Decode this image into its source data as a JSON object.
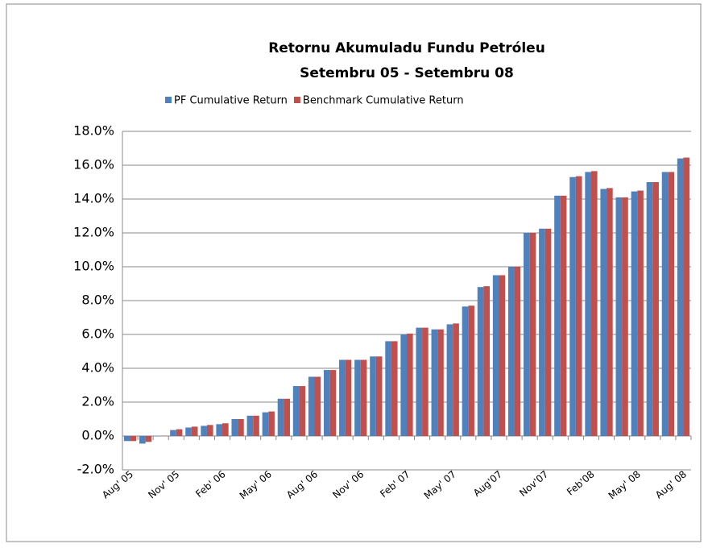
{
  "chart_data": {
    "type": "bar",
    "title": "Retornu Akumuladu Fundu Petróleu",
    "subtitle": "Setembru 05 - Setembru 08",
    "categories": [
      "Aug' 05",
      null,
      null,
      "Nov' 05",
      null,
      null,
      "Feb' 06",
      null,
      null,
      "May' 06",
      null,
      null,
      "Aug' 06",
      null,
      null,
      "Nov' 06",
      null,
      null,
      "Feb' 07",
      null,
      null,
      "May' 07",
      null,
      null,
      "Aug'07",
      null,
      null,
      "Nov'07",
      null,
      null,
      "Feb'08",
      null,
      null,
      "May' 08",
      null,
      null,
      "Aug' 08"
    ],
    "series": [
      {
        "name": "PF Cumulative Return",
        "color": "#4f81bd",
        "values": [
          -0.3,
          -0.45,
          0.0,
          0.35,
          0.5,
          0.6,
          0.7,
          1.0,
          1.2,
          1.4,
          2.2,
          2.95,
          3.5,
          3.9,
          4.5,
          4.5,
          4.7,
          5.6,
          6.0,
          6.4,
          6.3,
          6.6,
          7.65,
          8.8,
          9.5,
          10.0,
          12.0,
          12.25,
          14.2,
          15.3,
          15.6,
          14.6,
          14.1,
          14.45,
          15.0,
          15.6,
          16.4
        ]
      },
      {
        "name": "Benchmark Cumulative Return",
        "color": "#c0504d",
        "values": [
          -0.3,
          -0.35,
          0.02,
          0.4,
          0.55,
          0.65,
          0.75,
          1.0,
          1.2,
          1.45,
          2.2,
          2.95,
          3.5,
          3.9,
          4.5,
          4.5,
          4.7,
          5.6,
          6.05,
          6.4,
          6.3,
          6.65,
          7.7,
          8.85,
          9.5,
          10.0,
          12.0,
          12.25,
          14.2,
          15.35,
          15.65,
          14.65,
          14.1,
          14.5,
          15.0,
          15.6,
          16.45
        ]
      }
    ],
    "ylim": [
      -2,
      18
    ],
    "yticks": [
      {
        "value": -2,
        "label": "-2.0%"
      },
      {
        "value": 0,
        "label": "0.0%"
      },
      {
        "value": 2,
        "label": "2.0%"
      },
      {
        "value": 4,
        "label": "4.0%"
      },
      {
        "value": 6,
        "label": "6.0%"
      },
      {
        "value": 8,
        "label": "8.0%"
      },
      {
        "value": 10,
        "label": "10.0%"
      },
      {
        "value": 12,
        "label": "12.0%"
      },
      {
        "value": 14,
        "label": "14.0%"
      },
      {
        "value": 16,
        "label": "16.0%"
      },
      {
        "value": 18,
        "label": "18.0%"
      }
    ],
    "grid": true,
    "legend": "top"
  }
}
